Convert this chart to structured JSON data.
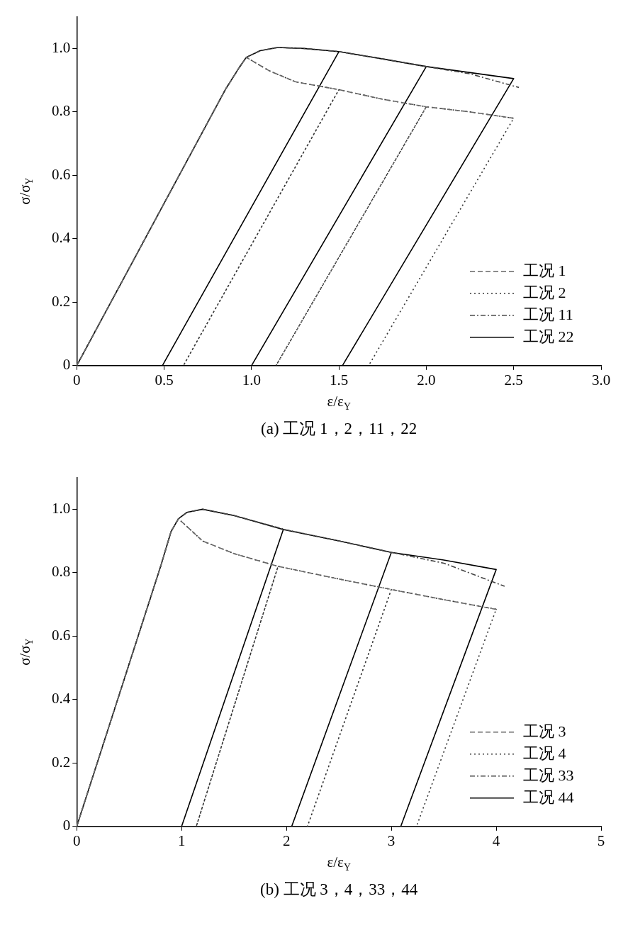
{
  "chart_data": [
    {
      "type": "line",
      "title": "(a) 工况 1，2，11，22",
      "xlabel": "ε/ε$_{Y}$",
      "ylabel": "σ/σ$_{Y}$",
      "xlim": [
        0,
        3
      ],
      "xticks": [
        0,
        0.5,
        {
          "value": 1,
          "label": "1.0"
        },
        1.5,
        {
          "value": 2,
          "label": "2.0"
        },
        2.5,
        {
          "value": 3,
          "label": "3.0"
        }
      ],
      "ylim": [
        0,
        1.1
      ],
      "yticks": [
        0,
        0.2,
        0.4,
        0.6,
        0.8,
        {
          "value": 1,
          "label": "1.0"
        }
      ],
      "grid": false,
      "legend": "bottom right",
      "marker": "none",
      "series": [
        {
          "name": "工况 1",
          "color": "#666666",
          "line_style": "dashed",
          "x": [
            0,
            0.85,
            0.93,
            0.97,
            1.1,
            1.25,
            1.5,
            1.75,
            2.0,
            2.25,
            2.5
          ],
          "values": [
            0,
            0.87,
            0.94,
            0.972,
            0.93,
            0.895,
            0.87,
            0.84,
            0.816,
            0.8,
            0.78
          ]
        },
        {
          "name": "工况 2",
          "color": "#333333",
          "line_style": "dotted",
          "x": [
            0,
            0.85,
            0.93,
            0.97,
            1.1,
            1.25,
            1.5,
            0.61,
            1.5,
            1.75,
            2.0,
            1.14,
            2.0,
            2.25,
            2.5,
            1.67
          ],
          "values": [
            0,
            0.87,
            0.94,
            0.972,
            0.93,
            0.895,
            0.87,
            0,
            0.87,
            0.84,
            0.816,
            0,
            0.816,
            0.8,
            0.78,
            0
          ]
        },
        {
          "name": "工况 11",
          "color": "#444444",
          "line_style": "dashdot",
          "x": [
            0,
            0.85,
            0.93,
            0.97,
            1.05,
            1.15,
            1.3,
            1.5,
            1.75,
            2.0,
            2.25,
            2.53
          ],
          "values": [
            0,
            0.87,
            0.94,
            0.972,
            0.993,
            1.003,
            1.0,
            0.99,
            0.967,
            0.943,
            0.92,
            0.877
          ]
        },
        {
          "name": "工况 22",
          "color": "#000000",
          "line_style": "solid",
          "x": [
            0,
            0.85,
            0.93,
            0.97,
            1.05,
            1.15,
            1.3,
            1.5,
            0.49,
            1.5,
            1.75,
            2.0,
            1.0,
            2.0,
            2.25,
            2.5,
            1.52
          ],
          "values": [
            0,
            0.87,
            0.94,
            0.972,
            0.993,
            1.003,
            1.0,
            0.99,
            0,
            0.99,
            0.967,
            0.943,
            0,
            0.943,
            0.924,
            0.905,
            0
          ]
        }
      ]
    },
    {
      "type": "line",
      "title": "(b) 工况 3，4，33，44",
      "xlabel": "ε/ε$_{Y}$",
      "ylabel": "σ/σ$_{Y}$",
      "xlim": [
        0,
        5
      ],
      "xticks": [
        0,
        1,
        2,
        3,
        4,
        5
      ],
      "ylim": [
        0,
        1.1
      ],
      "yticks": [
        0,
        0.2,
        0.4,
        0.6,
        0.8,
        {
          "value": 1,
          "label": "1.0"
        }
      ],
      "grid": false,
      "legend": "bottom right",
      "marker": "none",
      "series": [
        {
          "name": "工况 3",
          "color": "#666666",
          "line_style": "dashed",
          "x": [
            0,
            0.8,
            0.9,
            0.97,
            1.2,
            1.5,
            1.92,
            2.5,
            3.0,
            3.5,
            4.02
          ],
          "values": [
            0,
            0.82,
            0.93,
            0.97,
            0.9,
            0.86,
            0.82,
            0.78,
            0.747,
            0.715,
            0.683
          ]
        },
        {
          "name": "工况 4",
          "color": "#333333",
          "line_style": "dotted",
          "x": [
            0,
            0.8,
            0.9,
            0.97,
            1.2,
            1.5,
            1.92,
            1.14,
            1.92,
            2.5,
            3.0,
            2.2,
            3.0,
            3.5,
            4.0,
            3.24
          ],
          "values": [
            0,
            0.82,
            0.93,
            0.97,
            0.9,
            0.86,
            0.82,
            0,
            0.82,
            0.78,
            0.747,
            0,
            0.747,
            0.715,
            0.685,
            0
          ]
        },
        {
          "name": "工况 33",
          "color": "#444444",
          "line_style": "dashdot",
          "x": [
            0,
            0.8,
            0.9,
            0.97,
            1.05,
            1.2,
            1.5,
            2.0,
            2.5,
            3.0,
            3.5,
            4.08
          ],
          "values": [
            0,
            0.82,
            0.93,
            0.97,
            0.99,
            1.0,
            0.98,
            0.935,
            0.9,
            0.864,
            0.83,
            0.757
          ]
        },
        {
          "name": "工况 44",
          "color": "#000000",
          "line_style": "solid",
          "x": [
            0,
            0.8,
            0.9,
            0.97,
            1.05,
            1.2,
            1.5,
            1.97,
            1.0,
            1.97,
            2.5,
            3.0,
            2.05,
            3.0,
            3.5,
            4.0,
            3.09
          ],
          "values": [
            0,
            0.82,
            0.93,
            0.97,
            0.99,
            1.0,
            0.98,
            0.936,
            0,
            0.936,
            0.9,
            0.864,
            0,
            0.864,
            0.84,
            0.81,
            0
          ]
        }
      ]
    }
  ]
}
